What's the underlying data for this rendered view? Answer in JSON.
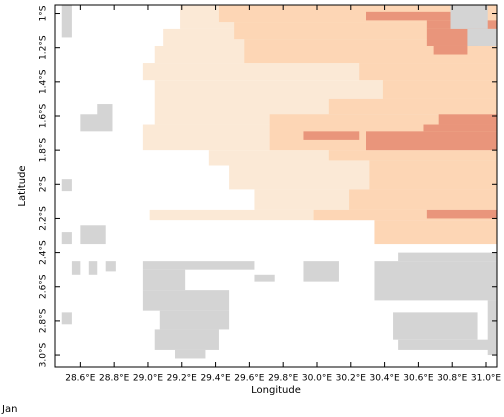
{
  "chart_data": {
    "type": "raster",
    "x_label": "Longitude",
    "y_label": "Latitude",
    "caption": "Jan",
    "xlim": [
      28.45,
      31.065
    ],
    "ylim": [
      -3.07,
      -0.95
    ],
    "xticks": [
      {
        "value": 28.6,
        "label": "28.6°E"
      },
      {
        "value": 28.8,
        "label": "28.8°E"
      },
      {
        "value": 29.0,
        "label": "29.0°E"
      },
      {
        "value": 29.2,
        "label": "29.2°E"
      },
      {
        "value": 29.4,
        "label": "29.4°E"
      },
      {
        "value": 29.6,
        "label": "29.6°E"
      },
      {
        "value": 29.8,
        "label": "29.8°E"
      },
      {
        "value": 30.0,
        "label": "30.0°E"
      },
      {
        "value": 30.2,
        "label": "30.2°E"
      },
      {
        "value": 30.4,
        "label": "30.4°E"
      },
      {
        "value": 30.6,
        "label": "30.6°E"
      },
      {
        "value": 30.8,
        "label": "30.8°E"
      },
      {
        "value": 31.0,
        "label": "31.0°E"
      }
    ],
    "yticks": [
      {
        "value": -1.0,
        "label": "1°S"
      },
      {
        "value": -1.2,
        "label": "1.2°S"
      },
      {
        "value": -1.4,
        "label": "1.4°S"
      },
      {
        "value": -1.6,
        "label": "1.6°S"
      },
      {
        "value": -1.8,
        "label": "1.8°S"
      },
      {
        "value": -2.0,
        "label": "2°S"
      },
      {
        "value": -2.2,
        "label": "2.2°S"
      },
      {
        "value": -2.4,
        "label": "2.4°S"
      },
      {
        "value": -2.6,
        "label": "2.6°S"
      },
      {
        "value": -2.8,
        "label": "2.8°S"
      },
      {
        "value": -3.0,
        "label": "3.0°S"
      }
    ],
    "level_colors": [
      "#d4d4d4",
      "#fbe9d6",
      "#fdd6b5",
      "#e9957b"
    ],
    "regions": [
      [
        29.19,
        31.065,
        -0.95,
        -1.09,
        1
      ],
      [
        29.09,
        31.065,
        -1.09,
        -1.19,
        1
      ],
      [
        29.04,
        31.065,
        -1.19,
        -1.29,
        1
      ],
      [
        28.97,
        31.065,
        -1.29,
        -1.39,
        1
      ],
      [
        29.04,
        31.065,
        -1.39,
        -1.65,
        1
      ],
      [
        28.97,
        31.065,
        -1.65,
        -1.8,
        1
      ],
      [
        29.36,
        31.065,
        -1.8,
        -1.89,
        1
      ],
      [
        29.48,
        31.065,
        -1.89,
        -2.03,
        1
      ],
      [
        29.63,
        31.065,
        -2.03,
        -2.15,
        1
      ],
      [
        29.01,
        31.065,
        -2.15,
        -2.21,
        1
      ],
      [
        30.34,
        31.065,
        -2.21,
        -2.35,
        1
      ],
      [
        29.42,
        31.065,
        -0.95,
        -1.05,
        2
      ],
      [
        29.51,
        31.065,
        -1.05,
        -1.15,
        2
      ],
      [
        29.57,
        31.065,
        -1.15,
        -1.29,
        2
      ],
      [
        30.25,
        31.065,
        -1.29,
        -1.39,
        2
      ],
      [
        30.39,
        31.065,
        -1.39,
        -1.5,
        2
      ],
      [
        30.07,
        31.065,
        -1.5,
        -1.59,
        2
      ],
      [
        29.72,
        31.065,
        -1.59,
        -1.8,
        2
      ],
      [
        30.07,
        31.065,
        -1.8,
        -1.86,
        2
      ],
      [
        30.31,
        31.065,
        -1.86,
        -2.03,
        2
      ],
      [
        30.19,
        31.065,
        -2.03,
        -2.15,
        2
      ],
      [
        29.98,
        31.065,
        -2.15,
        -2.21,
        2
      ],
      [
        30.34,
        31.065,
        -2.21,
        -2.35,
        2
      ],
      [
        30.29,
        30.81,
        -0.99,
        -1.04,
        3
      ],
      [
        30.65,
        31.065,
        -1.04,
        -1.09,
        3
      ],
      [
        30.65,
        30.95,
        -1.09,
        -1.19,
        3
      ],
      [
        30.69,
        30.89,
        -1.19,
        -1.24,
        3
      ],
      [
        29.92,
        30.25,
        -1.69,
        -1.74,
        3
      ],
      [
        30.72,
        31.065,
        -1.59,
        -1.65,
        3
      ],
      [
        30.63,
        31.065,
        -1.65,
        -1.69,
        3
      ],
      [
        30.29,
        31.065,
        -1.69,
        -1.8,
        3
      ],
      [
        30.65,
        31.065,
        -2.15,
        -2.2,
        3
      ],
      [
        30.79,
        31.01,
        -0.95,
        -1.09,
        0
      ],
      [
        30.89,
        31.065,
        -1.09,
        -1.19,
        0
      ],
      [
        28.49,
        28.55,
        -0.95,
        -1.14,
        0
      ],
      [
        28.49,
        28.55,
        -1.97,
        -2.04,
        0
      ],
      [
        28.49,
        28.55,
        -2.28,
        -2.35,
        0
      ],
      [
        28.55,
        28.6,
        -2.45,
        -2.53,
        0
      ],
      [
        28.49,
        28.55,
        -2.75,
        -2.82,
        0
      ],
      [
        28.6,
        28.75,
        -2.24,
        -2.35,
        0
      ],
      [
        28.65,
        28.7,
        -2.45,
        -2.53,
        0
      ],
      [
        28.75,
        28.81,
        -2.45,
        -2.51,
        0
      ],
      [
        28.6,
        28.79,
        -1.59,
        -1.69,
        0
      ],
      [
        28.7,
        28.79,
        -1.53,
        -1.61,
        0
      ],
      [
        28.97,
        29.63,
        -2.45,
        -2.5,
        0
      ],
      [
        28.97,
        29.22,
        -2.5,
        -2.62,
        0
      ],
      [
        28.97,
        29.48,
        -2.62,
        -2.74,
        0
      ],
      [
        29.07,
        29.48,
        -2.74,
        -2.85,
        0
      ],
      [
        29.04,
        29.42,
        -2.85,
        -2.97,
        0
      ],
      [
        29.16,
        29.34,
        -2.97,
        -3.02,
        0
      ],
      [
        29.63,
        29.75,
        -2.53,
        -2.57,
        0
      ],
      [
        29.92,
        30.13,
        -2.45,
        -2.57,
        0
      ],
      [
        30.48,
        31.065,
        -2.4,
        -2.45,
        0
      ],
      [
        30.34,
        31.065,
        -2.45,
        -2.68,
        0
      ],
      [
        30.45,
        30.95,
        -2.75,
        -2.91,
        0
      ],
      [
        30.48,
        31.065,
        -2.91,
        -2.97,
        0
      ],
      [
        31.01,
        31.065,
        -2.68,
        -3.0,
        0
      ]
    ]
  }
}
